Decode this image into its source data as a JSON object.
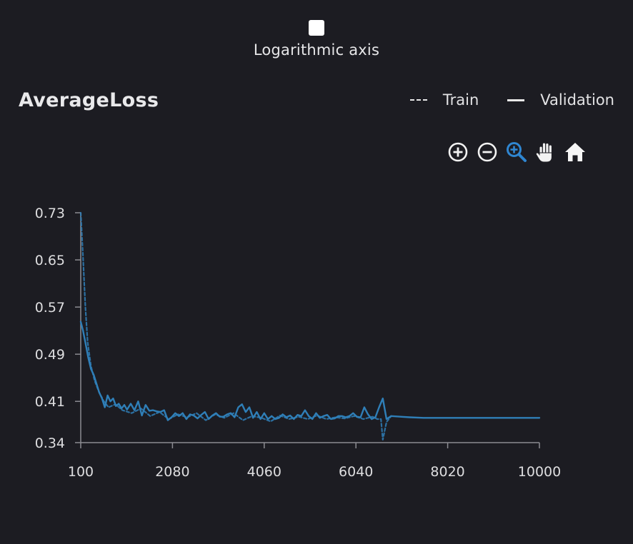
{
  "log_axis": {
    "checked": false,
    "label": "Logarithmic axis"
  },
  "chart_data": {
    "type": "line",
    "title": "AverageLoss",
    "xlabel": "",
    "ylabel": "",
    "xlim": [
      100,
      10000
    ],
    "ylim": [
      0.34,
      0.73
    ],
    "x_ticks": [
      "100",
      "2080",
      "4060",
      "6040",
      "8020",
      "10000"
    ],
    "y_ticks": [
      "0.73",
      "0.65",
      "0.57",
      "0.49",
      "0.41",
      "0.34"
    ],
    "grid": false,
    "legend_position": "top-right",
    "series": [
      {
        "name": "Train",
        "style": "dashed",
        "color": "#2f7fb8",
        "x": [
          100,
          140,
          200,
          250,
          320,
          400,
          500,
          600,
          700,
          850,
          1000,
          1200,
          1400,
          1600,
          1800,
          2000,
          2200,
          2400,
          2600,
          2800,
          3000,
          3200,
          3400,
          3600,
          3800,
          4000,
          4200,
          4400,
          4600,
          4800,
          5000,
          5200,
          5400,
          5600,
          5800,
          6000,
          6200,
          6400,
          6500,
          6580,
          6620,
          6700,
          6800
        ],
        "y": [
          0.73,
          0.67,
          0.57,
          0.51,
          0.47,
          0.445,
          0.425,
          0.41,
          0.4,
          0.405,
          0.395,
          0.39,
          0.398,
          0.385,
          0.392,
          0.38,
          0.388,
          0.383,
          0.39,
          0.378,
          0.388,
          0.382,
          0.39,
          0.378,
          0.385,
          0.382,
          0.376,
          0.386,
          0.38,
          0.384,
          0.38,
          0.386,
          0.38,
          0.383,
          0.381,
          0.385,
          0.38,
          0.384,
          0.38,
          0.38,
          0.345,
          0.375,
          0.385
        ]
      },
      {
        "name": "Validation",
        "style": "solid",
        "color": "#2f7fb8",
        "x": [
          100,
          150,
          200,
          260,
          320,
          380,
          440,
          500,
          560,
          620,
          680,
          740,
          800,
          860,
          920,
          980,
          1040,
          1100,
          1180,
          1260,
          1340,
          1420,
          1500,
          1580,
          1660,
          1740,
          1820,
          1900,
          1980,
          2060,
          2140,
          2220,
          2300,
          2380,
          2460,
          2540,
          2620,
          2700,
          2780,
          2860,
          2940,
          3020,
          3100,
          3180,
          3260,
          3340,
          3420,
          3500,
          3580,
          3660,
          3740,
          3820,
          3900,
          3980,
          4060,
          4140,
          4220,
          4300,
          4380,
          4460,
          4540,
          4620,
          4700,
          4780,
          4860,
          4940,
          5020,
          5100,
          5180,
          5260,
          5340,
          5420,
          5500,
          5580,
          5660,
          5740,
          5820,
          5900,
          5980,
          6060,
          6140,
          6220,
          6300,
          6380,
          6460,
          6540,
          6620,
          6700,
          6800,
          7000,
          7200,
          7500,
          8000,
          8500,
          9000,
          9500,
          10000
        ],
        "y": [
          0.545,
          0.53,
          0.51,
          0.485,
          0.465,
          0.455,
          0.44,
          0.425,
          0.415,
          0.4,
          0.42,
          0.41,
          0.415,
          0.402,
          0.406,
          0.398,
          0.404,
          0.396,
          0.406,
          0.395,
          0.41,
          0.386,
          0.404,
          0.394,
          0.395,
          0.393,
          0.392,
          0.395,
          0.378,
          0.383,
          0.39,
          0.385,
          0.39,
          0.38,
          0.388,
          0.386,
          0.381,
          0.387,
          0.392,
          0.38,
          0.386,
          0.39,
          0.384,
          0.384,
          0.388,
          0.39,
          0.383,
          0.4,
          0.405,
          0.392,
          0.4,
          0.382,
          0.392,
          0.38,
          0.39,
          0.38,
          0.385,
          0.38,
          0.382,
          0.388,
          0.383,
          0.386,
          0.38,
          0.387,
          0.385,
          0.395,
          0.385,
          0.38,
          0.39,
          0.382,
          0.385,
          0.387,
          0.38,
          0.381,
          0.385,
          0.385,
          0.383,
          0.385,
          0.39,
          0.384,
          0.383,
          0.4,
          0.388,
          0.38,
          0.383,
          0.4,
          0.415,
          0.38,
          0.385,
          0.384,
          0.383,
          0.382,
          0.382,
          0.382,
          0.382,
          0.382,
          0.382
        ]
      }
    ],
    "colors": {
      "background": "#1c1c22",
      "series": "#2f7fb8",
      "axis": "#8c8c92",
      "text": "#e8e8ea",
      "active_tool": "#2f86d1"
    }
  },
  "toolbar": {
    "zoom_in_icon": "zoom-in-icon",
    "zoom_out_icon": "zoom-out-icon",
    "box_zoom_icon": "box-zoom-icon",
    "pan_icon": "pan-hand-icon",
    "home_icon": "home-icon",
    "active": "box_zoom"
  }
}
